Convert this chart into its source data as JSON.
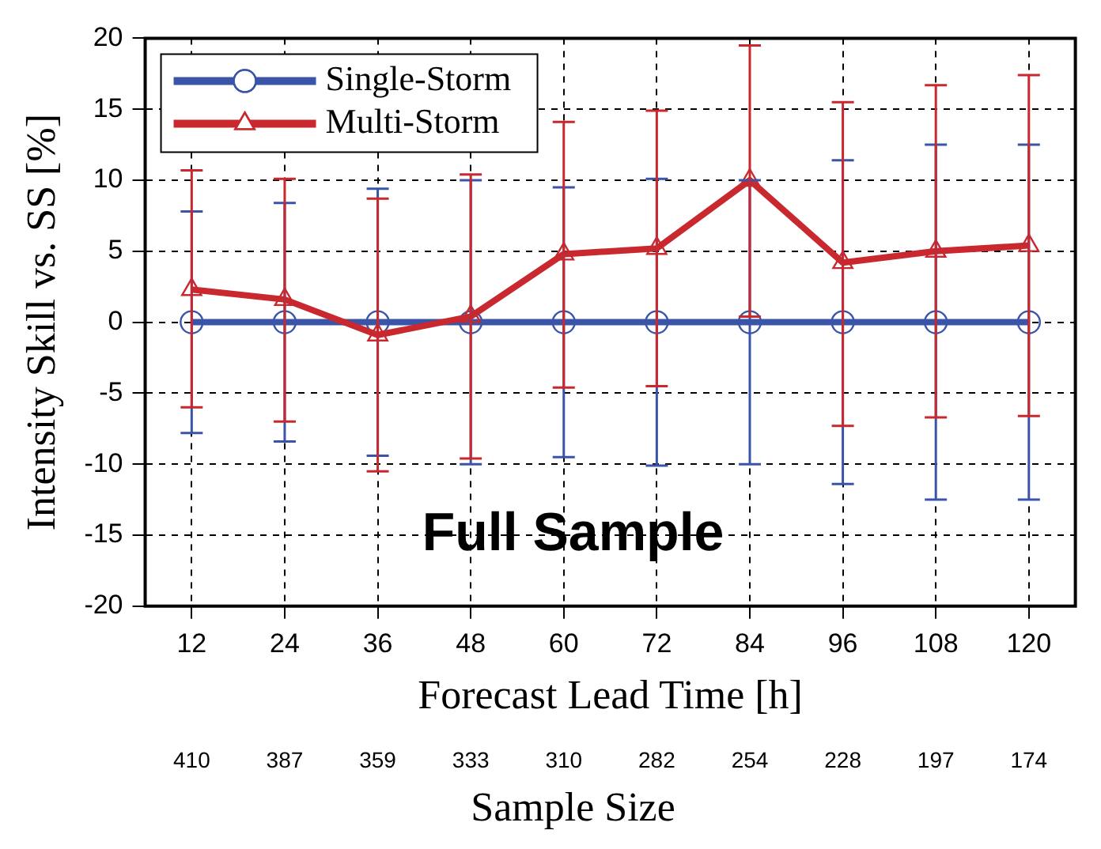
{
  "chart_data": {
    "type": "line",
    "xlabel": "Forecast Lead Time [h]",
    "ylabel": "Intensity Skill vs. SS [%]",
    "categories": [
      "12",
      "24",
      "36",
      "48",
      "60",
      "72",
      "84",
      "96",
      "108",
      "120"
    ],
    "ylim": [
      -20,
      20
    ],
    "yticks": [
      -20,
      -15,
      -10,
      -5,
      0,
      5,
      10,
      15,
      20
    ],
    "grid": true,
    "legend": "top left",
    "series": [
      {
        "name": "Single-Storm",
        "color": "#3a55a8",
        "marker": "circle",
        "values": [
          0,
          0,
          0,
          0,
          0,
          0,
          0,
          0,
          0,
          0
        ],
        "errors": [
          7.8,
          8.4,
          9.4,
          10,
          9.5,
          10.1,
          10,
          11.4,
          12.5,
          12.5
        ]
      },
      {
        "name": "Multi-Storm",
        "color": "#c8282e",
        "marker": "triangle",
        "values": [
          2.3,
          1.6,
          -0.9,
          0.4,
          4.8,
          5.2,
          10,
          4.2,
          5,
          5.4
        ],
        "errors": [
          [
            -6,
            10.7
          ],
          [
            -7,
            10.1
          ],
          [
            -10.5,
            8.7
          ],
          [
            -9.6,
            10.4
          ],
          [
            -4.6,
            14.1
          ],
          [
            -4.5,
            14.9
          ],
          [
            0.4,
            19.5
          ],
          [
            -7.3,
            15.5
          ],
          [
            -6.7,
            16.7
          ],
          [
            -6.6,
            17.4
          ]
        ]
      }
    ],
    "annotations": [
      "Full Sample",
      "410",
      "387",
      "359",
      "333",
      "310",
      "282",
      "254",
      "228",
      "197",
      "174",
      "Sample Size"
    ]
  }
}
